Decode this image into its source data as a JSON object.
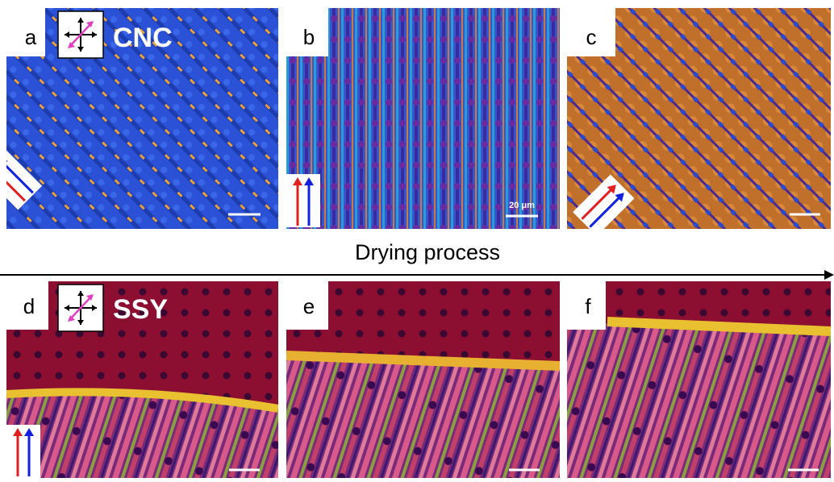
{
  "panels": [
    {
      "label": "a",
      "material": "CNC"
    },
    {
      "label": "b",
      "scale_bar": "20 μm"
    },
    {
      "label": "c"
    },
    {
      "label": "d",
      "material": "SSY"
    },
    {
      "label": "e"
    },
    {
      "label": "f"
    }
  ],
  "process_label": "Drying process"
}
